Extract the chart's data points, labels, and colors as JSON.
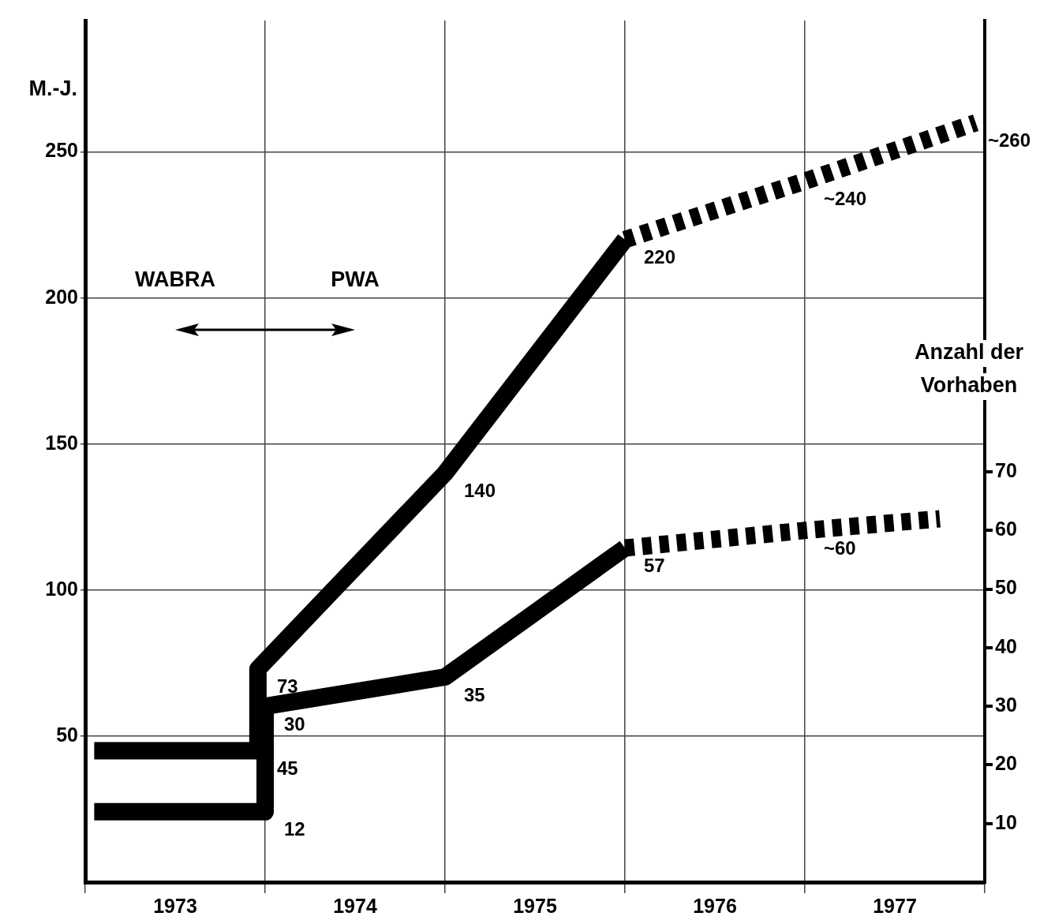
{
  "chart_data": {
    "type": "line",
    "ylabel": "M.-J.",
    "y2label": "Anzahl der Vorhaben",
    "xlim": [
      1973,
      1978
    ],
    "xticks": [
      {
        "value": 1973,
        "label": null
      },
      {
        "value": 1973.5,
        "label": "1973"
      },
      {
        "value": 1974,
        "label": null
      },
      {
        "value": 1974.5,
        "label": "1974"
      },
      {
        "value": 1975,
        "label": null
      },
      {
        "value": 1975.5,
        "label": "1975"
      },
      {
        "value": 1976,
        "label": null
      },
      {
        "value": 1976.5,
        "label": "1976"
      },
      {
        "value": 1977,
        "label": null
      },
      {
        "value": 1977.5,
        "label": "1977"
      },
      {
        "value": 1978,
        "label": null
      }
    ],
    "ylim": [
      0,
      295
    ],
    "yticks": [
      50,
      100,
      150,
      200,
      250
    ],
    "y2lim": [
      0,
      147
    ],
    "y2ticks": [
      10,
      20,
      30,
      40,
      50,
      60,
      70
    ],
    "grid": true,
    "legend": false,
    "marker": "none",
    "annotations": [
      "WABRA",
      "PWA"
    ],
    "series": [
      {
        "color": "#000000",
        "line_style": "solid",
        "x": [
          1973.05,
          1973.96,
          1973.96,
          1975,
          1976
        ],
        "values": [
          45,
          45,
          73,
          140,
          220
        ],
        "value_labels": [
          null,
          "45",
          "73",
          "140",
          "220"
        ]
      },
      {
        "color": "#000000",
        "line_style": "dashed",
        "x": [
          1976,
          1977,
          1977.95
        ],
        "values": [
          220,
          240,
          260
        ],
        "value_labels": [
          null,
          "~240",
          "~260"
        ]
      },
      {
        "color": "#000000",
        "line_style": "solid",
        "axis": "y2",
        "x": [
          1973.05,
          1974,
          1974,
          1975,
          1976
        ],
        "values": [
          12,
          12,
          30,
          35,
          57
        ],
        "value_labels": [
          null,
          "12",
          "30",
          "35",
          "57"
        ]
      },
      {
        "color": "#000000",
        "line_style": "dashed",
        "axis": "y2",
        "x": [
          1976,
          1977,
          1977.75
        ],
        "values": [
          57,
          60,
          62
        ],
        "value_labels": [
          null,
          "~60",
          null
        ]
      }
    ]
  }
}
